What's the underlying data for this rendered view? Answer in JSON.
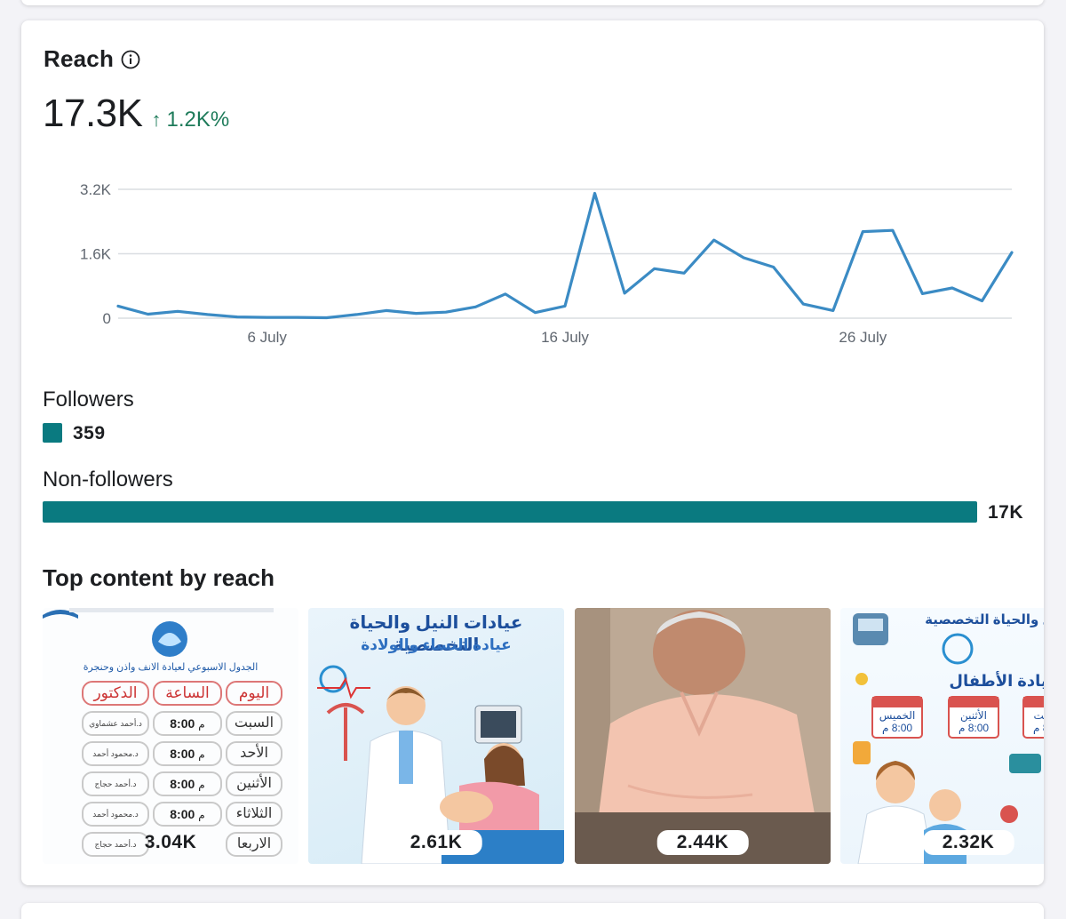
{
  "card": {
    "title": "Reach",
    "info_icon": "info-icon",
    "total_value": "17.3K",
    "delta": "1.2K%",
    "delta_direction": "up",
    "accent_color": "#1e7b5a"
  },
  "chart_data": {
    "type": "line",
    "y_ticks": [
      "3.2K",
      "1.6K",
      "0"
    ],
    "x_ticks": [
      "6 July",
      "16 July",
      "26 July"
    ],
    "ylim": [
      0,
      3200
    ],
    "x": [
      "1 July",
      "2 July",
      "3 July",
      "4 July",
      "5 July",
      "6 July",
      "7 July",
      "8 July",
      "9 July",
      "10 July",
      "11 July",
      "12 July",
      "13 July",
      "14 July",
      "15 July",
      "16 July",
      "17 July",
      "18 July",
      "19 July",
      "20 July",
      "21 July",
      "22 July",
      "23 July",
      "24 July",
      "25 July",
      "26 July",
      "27 July",
      "28 July",
      "29 July",
      "30 July",
      "31 July"
    ],
    "series": [
      {
        "color": "#3b8bc4",
        "values": [
          300,
          100,
          170,
          90,
          30,
          20,
          20,
          10,
          90,
          190,
          120,
          150,
          280,
          600,
          140,
          300,
          3100,
          620,
          1230,
          1120,
          1940,
          1500,
          1270,
          350,
          190,
          2150,
          2180,
          610,
          750,
          430,
          1630
        ]
      }
    ]
  },
  "followers": {
    "label": "Followers",
    "value": "359",
    "numeric": 359,
    "color": "#0a7a80"
  },
  "non_followers": {
    "label": "Non-followers",
    "value": "17K",
    "numeric": 17000,
    "color": "#0a7a80"
  },
  "top_content": {
    "title": "Top content by reach",
    "items": [
      {
        "value": "3.04K",
        "schedule_header": "الجدول الاسبوعي لعيادة الانف واذن وحنجرة",
        "col_headers": [
          "اليوم",
          "الساعة",
          "الدكتور"
        ],
        "days": [
          "السبت",
          "الأحد",
          "الأثنين",
          "الثلاثاء",
          "الاربعا"
        ],
        "time": "8:00",
        "time_suffix": "م",
        "doctors": [
          "د.أحمد عشماوي",
          "د.محمود أحمد",
          "د.أحمد حجاج",
          "د.محمود أحمد",
          "د.أحمد حجاج"
        ]
      },
      {
        "value": "2.61K",
        "heading": "عيادات النيل والحياة التخصصية",
        "subheading": "عيادة النساء والولادة"
      },
      {
        "value": "2.44K"
      },
      {
        "value": "2.32K",
        "heading": "عيادات النيل والحياة التخصصية",
        "subheading": "عيادة الأطفال",
        "days": [
          "الخميس",
          "الأثنين",
          "السبت"
        ],
        "time": "8:00 م"
      }
    ]
  }
}
